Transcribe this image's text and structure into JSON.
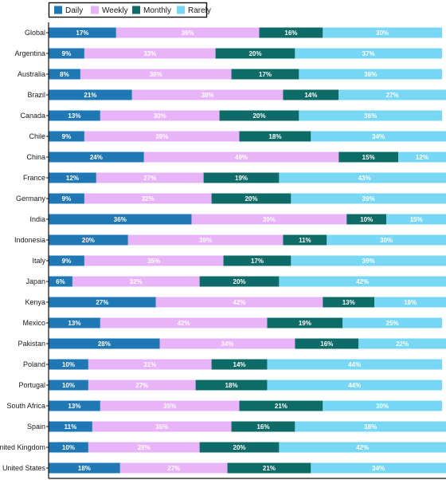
{
  "chart_data": {
    "type": "bar",
    "orientation": "horizontal",
    "stacked": true,
    "xlim": [
      0,
      100
    ],
    "title": "",
    "xlabel": "",
    "ylabel": "",
    "grid": false,
    "legend_position": "top-left",
    "categories": [
      "Global",
      "Argentina",
      "Australia",
      "Brazil",
      "Canada",
      "Chile",
      "China",
      "France",
      "Germany",
      "India",
      "Indonesia",
      "Italy",
      "Japan",
      "Kenya",
      "Mexico",
      "Pakistan",
      "Poland",
      "Portugal",
      "South Africa",
      "Spain",
      "United Kingdom",
      "United States"
    ],
    "series": [
      {
        "name": "Daily",
        "color": "#1f77b4",
        "label_color": "#ffffff",
        "values": [
          17,
          9,
          8,
          21,
          13,
          9,
          24,
          12,
          9,
          36,
          20,
          9,
          6,
          27,
          13,
          28,
          10,
          10,
          13,
          11,
          10,
          18
        ]
      },
      {
        "name": "Weekly",
        "color": "#e8b4f8",
        "label_color": "#ffffff",
        "values": [
          36,
          33,
          38,
          38,
          30,
          39,
          49,
          27,
          32,
          39,
          39,
          35,
          32,
          42,
          42,
          34,
          31,
          27,
          35,
          35,
          28,
          27
        ]
      },
      {
        "name": "Monthly",
        "color": "#0e6b68",
        "label_color": "#ffffff",
        "values": [
          16,
          20,
          17,
          14,
          20,
          18,
          15,
          19,
          20,
          10,
          11,
          17,
          20,
          13,
          19,
          16,
          14,
          18,
          21,
          16,
          20,
          21
        ]
      },
      {
        "name": "Rarely",
        "color": "#78d7f5",
        "label_color": "#ffffff",
        "values": [
          30,
          37,
          36,
          27,
          36,
          34,
          12,
          43,
          39,
          15,
          30,
          39,
          42,
          18,
          25,
          22,
          44,
          44,
          30,
          38,
          42,
          34
        ]
      }
    ]
  }
}
